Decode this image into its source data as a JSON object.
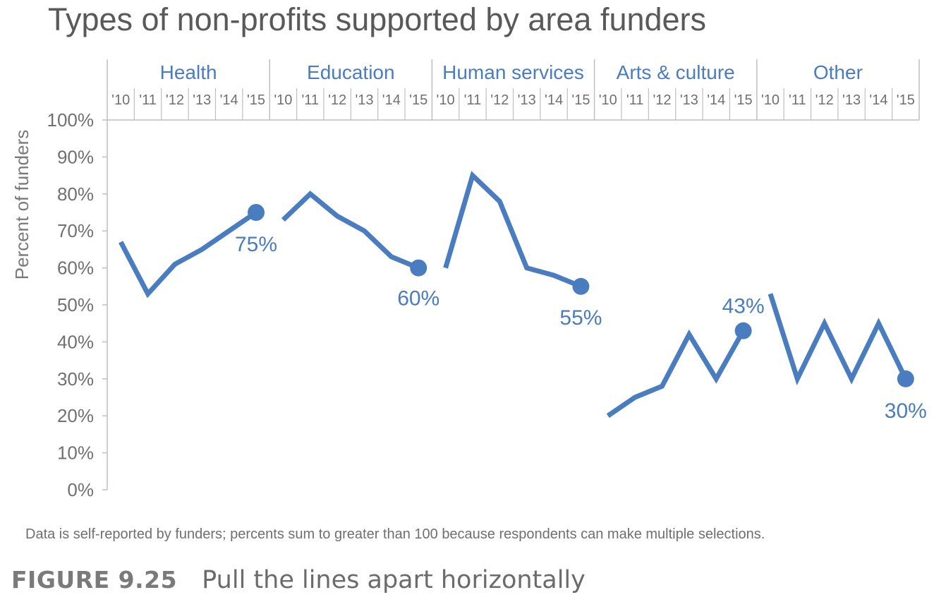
{
  "title": "Types of non-profits supported by area funders",
  "note": "Data is self-reported by funders; percents sum to greater than 100 because respondents can make multiple selections.",
  "figure": {
    "number": "FIGURE 9.25",
    "caption": "Pull the lines apart horizontally"
  },
  "colors": {
    "line": "#4a7dbf",
    "axis": "#bfbfbf",
    "text": "#707070"
  },
  "chart_data": {
    "type": "line",
    "ylabel": "Percent of funders",
    "ylim": [
      0,
      100
    ],
    "y_ticks": [
      "0%",
      "10%",
      "20%",
      "30%",
      "40%",
      "50%",
      "60%",
      "70%",
      "80%",
      "90%",
      "100%"
    ],
    "x": [
      "'10",
      "'11",
      "'12",
      "'13",
      "'14",
      "'15"
    ],
    "grid": false,
    "legend": "none",
    "series": [
      {
        "name": "Health",
        "values": [
          67,
          53,
          61,
          65,
          70,
          75
        ],
        "end_label": "75%"
      },
      {
        "name": "Education",
        "values": [
          73,
          80,
          74,
          70,
          63,
          60
        ],
        "end_label": "60%"
      },
      {
        "name": "Human services",
        "values": [
          60,
          85,
          78,
          60,
          58,
          55
        ],
        "end_label": "55%"
      },
      {
        "name": "Arts & culture",
        "values": [
          20,
          25,
          28,
          42,
          30,
          43
        ],
        "end_label": "43%"
      },
      {
        "name": "Other",
        "values": [
          53,
          30,
          45,
          30,
          45,
          30
        ],
        "end_label": "30%"
      }
    ]
  }
}
